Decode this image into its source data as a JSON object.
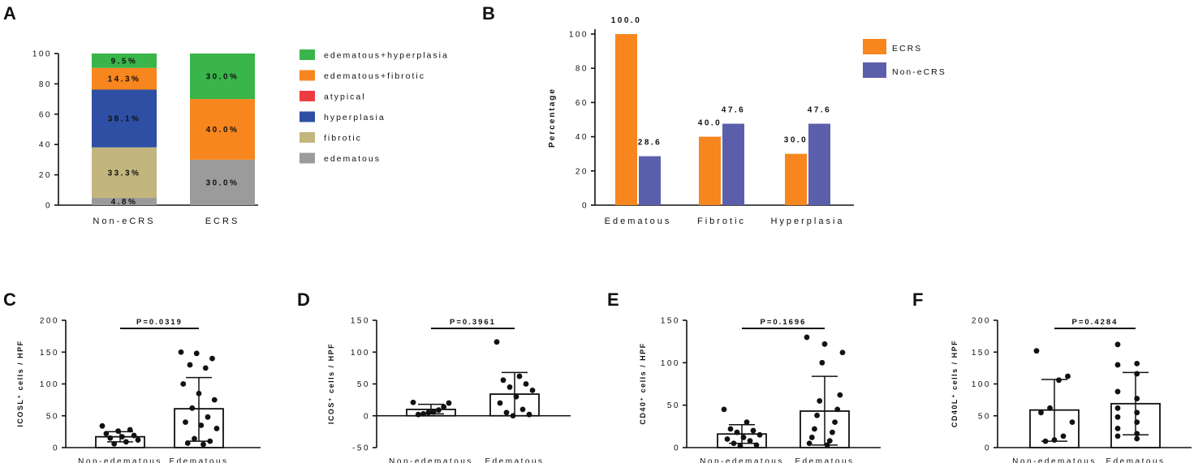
{
  "colors": {
    "edematous_hyperplasia": "#39b54a",
    "edematous_fibrotic": "#f7861e",
    "atypical": "#ee3b42",
    "hyperplasia": "#2e4fa3",
    "fibrotic": "#c2b57d",
    "edematous": "#9b9b9b",
    "ecrs": "#f7861e",
    "non_ecrs": "#5b5fab"
  },
  "panels": {
    "a": "A",
    "b": "B",
    "c": "C",
    "d": "D",
    "e": "E",
    "f": "F"
  },
  "chart_data": [
    {
      "id": "A",
      "type": "bar",
      "stacked": true,
      "categories": [
        "Non-eCRS",
        "ECRS"
      ],
      "ylim": [
        0,
        100
      ],
      "yticks": [
        0,
        20,
        40,
        60,
        80,
        100
      ],
      "series": [
        {
          "name": "edematous",
          "values": [
            4.8,
            30.0
          ],
          "labels": [
            "4.8%",
            "30.0%"
          ],
          "color": "#9b9b9b"
        },
        {
          "name": "fibrotic",
          "values": [
            33.3,
            0
          ],
          "labels": [
            "33.3%",
            ""
          ],
          "color": "#c2b57d"
        },
        {
          "name": "hyperplasia",
          "values": [
            38.1,
            0
          ],
          "labels": [
            "38.1%",
            ""
          ],
          "color": "#2e4fa3"
        },
        {
          "name": "atypical",
          "values": [
            0,
            0
          ],
          "labels": [
            "",
            ""
          ],
          "color": "#ee3b42"
        },
        {
          "name": "edematous+fibrotic",
          "values": [
            14.3,
            40.0
          ],
          "labels": [
            "14.3%",
            "40.0%"
          ],
          "color": "#f7861e"
        },
        {
          "name": "edematous+hyperplasia",
          "values": [
            9.5,
            30.0
          ],
          "labels": [
            "9.5%",
            "30.0%"
          ],
          "color": "#39b54a"
        }
      ],
      "legend": [
        "edematous+hyperplasia",
        "edematous+fibrotic",
        "atypical",
        "hyperplasia",
        "fibrotic",
        "edematous"
      ]
    },
    {
      "id": "B",
      "type": "bar",
      "categories": [
        "Edematous",
        "Fibrotic",
        "Hyperplasia"
      ],
      "ylabel": "Percentage",
      "ylim": [
        0,
        100
      ],
      "yticks": [
        0,
        20,
        40,
        60,
        80,
        100
      ],
      "series": [
        {
          "name": "ECRS",
          "values": [
            100.0,
            40.0,
            30.0
          ],
          "labels": [
            "100.0",
            "40.0",
            "30.0"
          ],
          "color": "#f7861e"
        },
        {
          "name": "Non-eCRS",
          "values": [
            28.6,
            47.6,
            47.6
          ],
          "labels": [
            "28.6",
            "47.6",
            "47.6"
          ],
          "color": "#5b5fab"
        }
      ]
    },
    {
      "id": "C",
      "type": "scatter",
      "categories": [
        "Non-edematous",
        "Edematous"
      ],
      "ylabel": "ICOSL⁺ cells / HPF",
      "ylim": [
        0,
        200
      ],
      "yticks": [
        0,
        50,
        100,
        150,
        200
      ],
      "pvalue": "P=0.0319",
      "bars": [
        {
          "mean": 17,
          "sd_low": 9,
          "sd_high": 25,
          "points": [
            34,
            28,
            26,
            22,
            19,
            17,
            15,
            12,
            9,
            6
          ]
        },
        {
          "mean": 61,
          "sd_low": 10,
          "sd_high": 110,
          "points": [
            150,
            148,
            140,
            130,
            125,
            100,
            85,
            75,
            62,
            48,
            40,
            35,
            30,
            14,
            10,
            7,
            5
          ]
        }
      ]
    },
    {
      "id": "D",
      "type": "scatter",
      "categories": [
        "Non-edematous",
        "Edematous"
      ],
      "ylabel": "ICOS⁺ cells / HPF",
      "ylim": [
        -50,
        150
      ],
      "yticks": [
        -50,
        0,
        50,
        100,
        150
      ],
      "pvalue": "P=0.3961",
      "bars": [
        {
          "mean": 10,
          "sd_low": 3,
          "sd_high": 18,
          "points": [
            21,
            20,
            14,
            9,
            6,
            5,
            3,
            2
          ]
        },
        {
          "mean": 34,
          "sd_low": 0,
          "sd_high": 68,
          "points": [
            116,
            62,
            56,
            50,
            45,
            40,
            30,
            20,
            10,
            5,
            2,
            0
          ]
        }
      ]
    },
    {
      "id": "E",
      "type": "scatter",
      "categories": [
        "Non-edematous",
        "Edematous"
      ],
      "ylabel": "CD40⁺ cells / HPF",
      "ylim": [
        0,
        150
      ],
      "yticks": [
        0,
        50,
        100,
        150
      ],
      "pvalue": "P=0.1696",
      "bars": [
        {
          "mean": 16,
          "sd_low": 5,
          "sd_high": 27,
          "points": [
            45,
            30,
            22,
            20,
            18,
            15,
            12,
            10,
            8,
            5,
            3,
            2
          ]
        },
        {
          "mean": 43,
          "sd_low": 3,
          "sd_high": 84,
          "points": [
            130,
            122,
            112,
            100,
            62,
            55,
            45,
            38,
            30,
            22,
            18,
            12,
            8,
            5,
            3
          ]
        }
      ]
    },
    {
      "id": "F",
      "type": "scatter",
      "categories": [
        "Non-edematous",
        "Edematous"
      ],
      "ylabel": "CD40L⁺ cells / HPF",
      "ylim": [
        0,
        200
      ],
      "yticks": [
        0,
        50,
        100,
        150,
        200
      ],
      "pvalue": "P=0.4284",
      "bars": [
        {
          "mean": 59,
          "sd_low": 10,
          "sd_high": 107,
          "points": [
            152,
            112,
            106,
            62,
            55,
            40,
            18,
            12,
            10
          ]
        },
        {
          "mean": 69,
          "sd_low": 20,
          "sd_high": 118,
          "points": [
            162,
            132,
            130,
            116,
            88,
            77,
            62,
            55,
            48,
            40,
            30,
            22,
            18,
            14
          ]
        }
      ]
    }
  ]
}
